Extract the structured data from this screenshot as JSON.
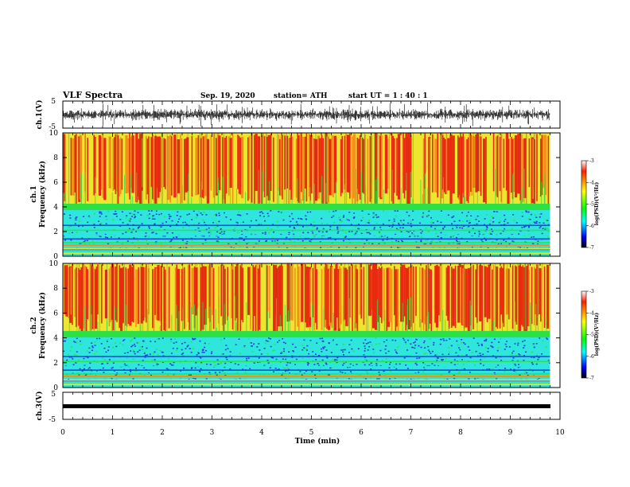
{
  "header": {
    "title": "VLF Spectra",
    "date": "Sep. 19, 2020",
    "station": "station= ATH",
    "start": "start  UT =   1 : 40 : 1"
  },
  "colors": {
    "red": "#e82a10",
    "orange": "#f29018",
    "yellow": "#ece62e",
    "green": "#2fe045",
    "cyan": "#2ee6dc",
    "blue": "#1a3cd8",
    "dark_blue": "#0a0a8c",
    "colorbar": [
      "#ffffff",
      "#ff0000",
      "#ffff00",
      "#00ff00",
      "#00ffff",
      "#0000ff",
      "#000000"
    ]
  },
  "chart_data": [
    {
      "type": "line",
      "name": "ch1-waveform",
      "ylabel": "ch.1(V)",
      "yticks": [
        "5",
        "-5"
      ],
      "ylim": [
        -5,
        5
      ],
      "xlim": [
        0,
        10
      ],
      "signal": "noisy waveform between about -4 and +4 V with frequent bursts, data ends near 9.8 min"
    },
    {
      "type": "heatmap",
      "name": "ch1-spectrogram",
      "ylabel": "ch.1\nFrequency (kHz)",
      "ylabel_lines": [
        "ch.1",
        "Frequency (kHz)"
      ],
      "yticks": [
        "0",
        "2",
        "4",
        "6",
        "8",
        "10"
      ],
      "ylim": [
        0,
        10
      ],
      "xlim": [
        0,
        10
      ],
      "data_end_min": 9.8,
      "band_boundary_khz": 4.0,
      "colorbar": {
        "ticks": [
          "-3",
          "-4",
          "-5",
          "-6",
          "-7"
        ],
        "label": "log(PSD)(V²/Hz)",
        "range": [
          -7,
          -3
        ]
      }
    },
    {
      "type": "heatmap",
      "name": "ch2-spectrogram",
      "ylabel": "ch.2\nFrequency (kHz)",
      "ylabel_lines": [
        "ch.2",
        "Frequency (kHz)"
      ],
      "yticks": [
        "0",
        "2",
        "4",
        "6",
        "8",
        "10"
      ],
      "ylim": [
        0,
        10
      ],
      "xlim": [
        0,
        10
      ],
      "data_end_min": 9.8,
      "band_boundary_khz": 4.3,
      "colorbar": {
        "ticks": [
          "-3",
          "-4",
          "-5",
          "-6",
          "-7"
        ],
        "label": "log(PSD)(V²/Hz)",
        "range": [
          -7,
          -3
        ]
      }
    },
    {
      "type": "line",
      "name": "ch3-waveform",
      "ylabel": "ch.3(V)",
      "yticks": [
        "5",
        "-5"
      ],
      "ylim": [
        -5,
        5
      ],
      "xlim": [
        0,
        10
      ],
      "signal": "flat thick trace near 0 V"
    }
  ],
  "xaxis": {
    "label": "Time  (min)",
    "ticks": [
      "0",
      "1",
      "2",
      "3",
      "4",
      "5",
      "6",
      "7",
      "8",
      "9",
      "10"
    ]
  }
}
